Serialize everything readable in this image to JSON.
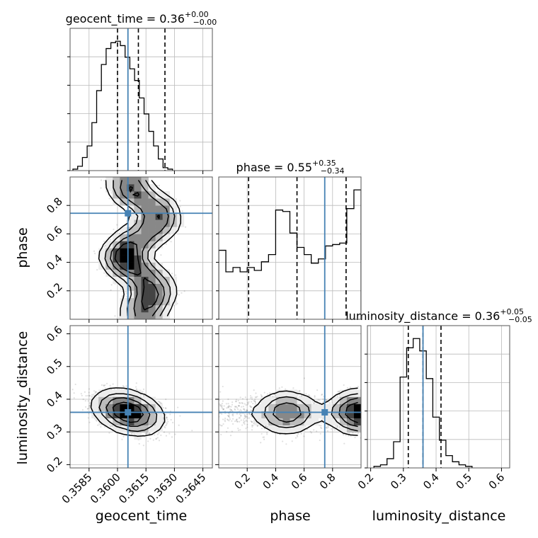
{
  "chart_data": {
    "type": "corner",
    "parameters": [
      {
        "name": "geocent_time",
        "title_prefix": "geocent_time = 0.36",
        "title_sup": "+0.00",
        "title_sub": "−0.00",
        "range": [
          0.3575,
          0.365
        ],
        "ticks": [
          0.3585,
          0.36,
          0.3615,
          0.363,
          0.3645
        ],
        "tick_labels": [
          "0.3585",
          "0.3600",
          "0.3615",
          "0.3630",
          "0.3645"
        ],
        "truth": 0.36055,
        "quantiles": [
          0.36,
          0.3611,
          0.3625
        ],
        "hist": {
          "edges_start": 0.35765,
          "bin_width": 0.00025,
          "counts": [
            1,
            3,
            9,
            17,
            33,
            55,
            73,
            84,
            88,
            89,
            86,
            78,
            70,
            62,
            50,
            39,
            27,
            17,
            8,
            2,
            1
          ]
        }
      },
      {
        "name": "phase",
        "title_prefix": "phase = 0.55",
        "title_sup": "+0.35",
        "title_sub": "−0.34",
        "range": [
          0.0,
          1.0
        ],
        "ticks": [
          0.2,
          0.4,
          0.6,
          0.8
        ],
        "tick_labels": [
          "0.2",
          "0.4",
          "0.6",
          "0.8"
        ],
        "truth": 0.745,
        "quantiles": [
          0.21,
          0.55,
          0.895
        ],
        "hist": {
          "edges_start": 0.0,
          "bin_width": 0.05,
          "counts": [
            48,
            33,
            36,
            33,
            36,
            34,
            40,
            45,
            76,
            75,
            60,
            50,
            45,
            39,
            42,
            51,
            52,
            53,
            77,
            90
          ]
        }
      },
      {
        "name": "luminosity_distance",
        "title_prefix": "luminosity_distance = 0.36",
        "title_sup": "+0.05",
        "title_sub": "−0.05",
        "range": [
          0.19,
          0.625
        ],
        "ticks": [
          0.2,
          0.3,
          0.4,
          0.5,
          0.6
        ],
        "tick_labels": [
          "0.2",
          "0.3",
          "0.4",
          "0.5",
          "0.6"
        ],
        "truth": 0.36,
        "quantiles": [
          0.315,
          0.36,
          0.415
        ],
        "hist": {
          "edges_start": 0.21,
          "bin_width": 0.02,
          "counts": [
            1,
            2,
            6,
            17,
            59,
            78,
            84,
            76,
            58,
            33,
            18,
            8,
            4,
            2,
            1
          ]
        }
      }
    ],
    "pair_plots": [
      {
        "x": "geocent_time",
        "y": "phase",
        "density_path": [
          [
            0.36045,
            0.95
          ],
          [
            0.3607,
            0.92
          ],
          [
            0.3612,
            0.85
          ],
          [
            0.3621,
            0.77
          ],
          [
            0.36225,
            0.68
          ],
          [
            0.3615,
            0.6
          ],
          [
            0.3607,
            0.52
          ],
          [
            0.3603,
            0.47
          ],
          [
            0.3602,
            0.42
          ],
          [
            0.3607,
            0.36
          ],
          [
            0.3614,
            0.3
          ],
          [
            0.3619,
            0.22
          ],
          [
            0.3619,
            0.15
          ],
          [
            0.3614,
            0.08
          ],
          [
            0.3612,
            0.02
          ]
        ],
        "path_sigma": [
          0.0005,
          0.045
        ]
      },
      {
        "x": "geocent_time",
        "y": "luminosity_distance",
        "center": [
          0.36055,
          0.36
        ],
        "sigma": [
          0.0008,
          0.027
        ],
        "correlation": -0.35
      },
      {
        "x": "phase",
        "y": "luminosity_distance",
        "modes_x": [
          0.48,
          0.96
        ],
        "mode_weights": [
          1.0,
          0.9
        ],
        "background_weight": 0.35,
        "sigma": [
          0.09,
          0.026
        ],
        "y_center": 0.36
      }
    ],
    "truth_color": "#4682b4"
  }
}
